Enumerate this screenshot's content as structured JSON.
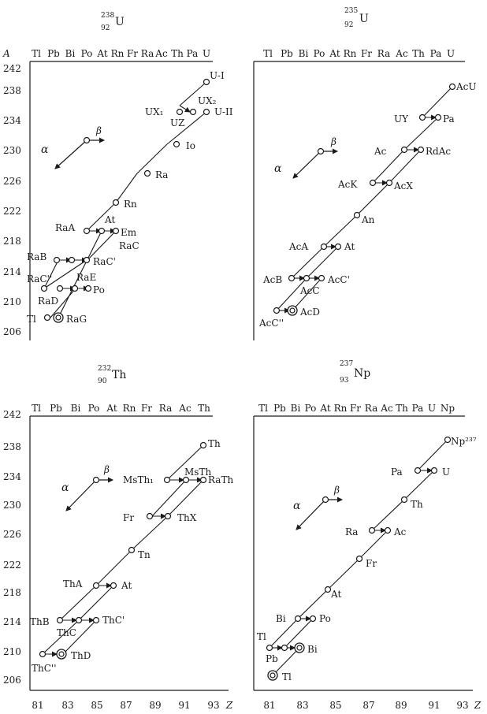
{
  "panels": [
    {
      "id": "u238",
      "header": {
        "mass": "238",
        "z": "92",
        "sym": "U"
      },
      "elements": [
        "Tl",
        "Pb",
        "Bi",
        "Po",
        "At",
        "Rn",
        "Fr",
        "Ra",
        "Ac",
        "Th",
        "Pa",
        "U"
      ],
      "axis_label_a": "A",
      "y_ticks": [
        "242",
        "238",
        "234",
        "230",
        "226",
        "222",
        "218",
        "214",
        "210",
        "206"
      ],
      "x_ticks": [],
      "legend": {
        "alpha": "α",
        "beta": "β"
      },
      "nuclides": [
        {
          "label": "U-I",
          "z": 92,
          "a": 238,
          "ring": false
        },
        {
          "label": "UX₁",
          "z": 90,
          "a": 234,
          "ring": false
        },
        {
          "label": "UX₂",
          "z": 91,
          "a": 234,
          "ring": false
        },
        {
          "label": "UZ",
          "z": 91,
          "a": 234,
          "ring": false
        },
        {
          "label": "U-II",
          "z": 92,
          "a": 234,
          "ring": false
        },
        {
          "label": "Io",
          "z": 90,
          "a": 230,
          "ring": false
        },
        {
          "label": "Ra",
          "z": 88,
          "a": 226,
          "ring": false
        },
        {
          "label": "Rn",
          "z": 86,
          "a": 222,
          "ring": false
        },
        {
          "label": "RaA",
          "z": 84,
          "a": 218,
          "ring": false
        },
        {
          "label": "At",
          "z": 85,
          "a": 218,
          "ring": false
        },
        {
          "label": "Em",
          "z": 86,
          "a": 218,
          "ring": false
        },
        {
          "label": "RaB",
          "z": 82,
          "a": 214,
          "ring": false
        },
        {
          "label": "RaC",
          "z": 83,
          "a": 214,
          "ring": false
        },
        {
          "label": "RaC'",
          "z": 84,
          "a": 214,
          "ring": false
        },
        {
          "label": "RaC''",
          "z": 81,
          "a": 210,
          "ring": false
        },
        {
          "label": "RaD",
          "z": 82,
          "a": 210,
          "ring": false
        },
        {
          "label": "RaE",
          "z": 83,
          "a": 210,
          "ring": false
        },
        {
          "label": "Po",
          "z": 84,
          "a": 210,
          "ring": false
        },
        {
          "label": "Tl",
          "z": 81,
          "a": 206,
          "ring": false
        },
        {
          "label": "RaG",
          "z": 82,
          "a": 206,
          "ring": true
        }
      ]
    },
    {
      "id": "u235",
      "header": {
        "mass": "235",
        "z": "92",
        "sym": "U"
      },
      "elements": [
        "Tl",
        "Pb",
        "Bi",
        "Po",
        "At",
        "Rn",
        "Fr",
        "Ra",
        "Ac",
        "Th",
        "Pa",
        "U"
      ],
      "axis_label_a": "",
      "y_ticks": [],
      "x_ticks": [],
      "legend": {
        "alpha": "α",
        "beta": "β"
      },
      "nuclides": [
        {
          "label": "AcU",
          "z": 92,
          "a": 235,
          "ring": false
        },
        {
          "label": "UY",
          "z": 90,
          "a": 231,
          "ring": false
        },
        {
          "label": "Pa",
          "z": 91,
          "a": 231,
          "ring": false
        },
        {
          "label": "Ac",
          "z": 89,
          "a": 227,
          "ring": false
        },
        {
          "label": "RdAc",
          "z": 90,
          "a": 227,
          "ring": false
        },
        {
          "label": "AcK",
          "z": 87,
          "a": 223,
          "ring": false
        },
        {
          "label": "AcX",
          "z": 88,
          "a": 223,
          "ring": false
        },
        {
          "label": "An",
          "z": 86,
          "a": 219,
          "ring": false
        },
        {
          "label": "AcA",
          "z": 84,
          "a": 215,
          "ring": false
        },
        {
          "label": "At",
          "z": 85,
          "a": 215,
          "ring": false
        },
        {
          "label": "AcB",
          "z": 82,
          "a": 211,
          "ring": false
        },
        {
          "label": "AcC",
          "z": 83,
          "a": 211,
          "ring": false
        },
        {
          "label": "AcC'",
          "z": 84,
          "a": 211,
          "ring": false
        },
        {
          "label": "AcC''",
          "z": 81,
          "a": 207,
          "ring": false
        },
        {
          "label": "AcD",
          "z": 82,
          "a": 207,
          "ring": true
        }
      ]
    },
    {
      "id": "th232",
      "header": {
        "mass": "232",
        "z": "90",
        "sym": "Th"
      },
      "elements": [
        "Tl",
        "Pb",
        "Bi",
        "Po",
        "At",
        "Rn",
        "Fr",
        "Ra",
        "Ac",
        "Th"
      ],
      "axis_label_a": "",
      "y_ticks": [
        "242",
        "238",
        "234",
        "230",
        "226",
        "222",
        "218",
        "214",
        "210",
        "206"
      ],
      "x_ticks": [
        "81",
        "83",
        "85",
        "87",
        "89",
        "91",
        "93",
        "Z"
      ],
      "legend": {
        "alpha": "α",
        "beta": "β"
      },
      "nuclides": [
        {
          "label": "Th",
          "z": 90,
          "a": 232,
          "ring": false
        },
        {
          "label": "MsTh₁",
          "z": 88,
          "a": 228,
          "ring": false
        },
        {
          "label": "MsTh",
          "z": 89,
          "a": 228,
          "ring": false
        },
        {
          "label": "RaTh",
          "z": 90,
          "a": 228,
          "ring": false
        },
        {
          "label": "Fr",
          "z": 87,
          "a": 224,
          "ring": false
        },
        {
          "label": "ThX",
          "z": 88,
          "a": 224,
          "ring": false
        },
        {
          "label": "Tn",
          "z": 86,
          "a": 220,
          "ring": false
        },
        {
          "label": "ThA",
          "z": 84,
          "a": 216,
          "ring": false
        },
        {
          "label": "At",
          "z": 85,
          "a": 216,
          "ring": false
        },
        {
          "label": "ThB",
          "z": 82,
          "a": 212,
          "ring": false
        },
        {
          "label": "ThC",
          "z": 83,
          "a": 212,
          "ring": false
        },
        {
          "label": "ThC'",
          "z": 84,
          "a": 212,
          "ring": false
        },
        {
          "label": "ThC''",
          "z": 81,
          "a": 208,
          "ring": false
        },
        {
          "label": "ThD",
          "z": 82,
          "a": 208,
          "ring": true
        }
      ]
    },
    {
      "id": "np237",
      "header": {
        "mass": "237",
        "z": "93",
        "sym": "Np"
      },
      "elements": [
        "Tl",
        "Pb",
        "Bi",
        "Po",
        "At",
        "Rn",
        "Fr",
        "Ra",
        "Ac",
        "Th",
        "Pa",
        "U",
        "Np"
      ],
      "axis_label_a": "",
      "y_ticks": [],
      "x_ticks": [
        "81",
        "83",
        "85",
        "87",
        "89",
        "91",
        "93",
        "Z"
      ],
      "legend": {
        "alpha": "α",
        "beta": "β"
      },
      "nuclides": [
        {
          "label": "Np²³⁷",
          "z": 93,
          "a": 237,
          "ring": false
        },
        {
          "label": "Pa",
          "z": 91,
          "a": 233,
          "ring": false
        },
        {
          "label": "U",
          "z": 92,
          "a": 233,
          "ring": false
        },
        {
          "label": "Th",
          "z": 90,
          "a": 229,
          "ring": false
        },
        {
          "label": "Ra",
          "z": 88,
          "a": 225,
          "ring": false
        },
        {
          "label": "Ac",
          "z": 89,
          "a": 225,
          "ring": false
        },
        {
          "label": "Fr",
          "z": 87,
          "a": 221,
          "ring": false
        },
        {
          "label": "At",
          "z": 85,
          "a": 217,
          "ring": false
        },
        {
          "label": "Bi",
          "z": 83,
          "a": 213,
          "ring": false
        },
        {
          "label": "Po",
          "z": 84,
          "a": 213,
          "ring": false
        },
        {
          "label": "Tl",
          "z": 81,
          "a": 209,
          "ring": false
        },
        {
          "label": "Pb",
          "z": 82,
          "a": 209,
          "ring": false
        },
        {
          "label": "Bi",
          "z": 83,
          "a": 209,
          "ring": true
        },
        {
          "label": "Tl",
          "z": 81,
          "a": 205,
          "ring": true
        }
      ]
    }
  ]
}
